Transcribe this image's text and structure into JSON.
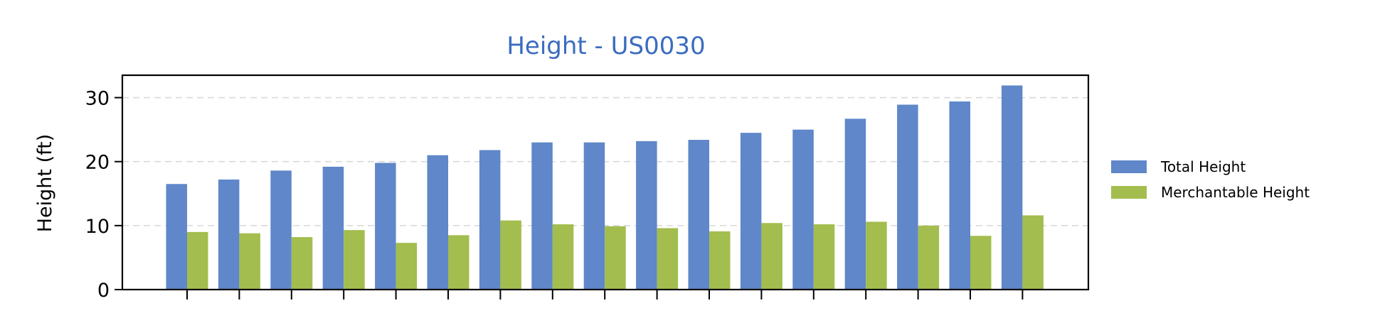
{
  "chart_data": {
    "type": "bar",
    "title": "Height - US0030",
    "xlabel": "",
    "ylabel": "Height (ft)",
    "ylim": [
      0,
      33.5
    ],
    "yticks": [
      0,
      10,
      20,
      30
    ],
    "grid": "y-dashed",
    "legend_position": "right",
    "categories": [
      "",
      "",
      "",
      "",
      "",
      "",
      "",
      "",
      "",
      "",
      "",
      "",
      "",
      "",
      "",
      "",
      ""
    ],
    "series": [
      {
        "name": "Total Height",
        "color": "#5f87c9",
        "values": [
          16.5,
          17.2,
          18.6,
          19.2,
          19.8,
          21.0,
          21.8,
          23.0,
          23.0,
          23.2,
          23.4,
          24.5,
          25.0,
          26.7,
          28.9,
          29.4,
          31.9
        ]
      },
      {
        "name": "Merchantable Height",
        "color": "#a3bd4e",
        "values": [
          9.0,
          8.8,
          8.2,
          9.3,
          7.3,
          8.5,
          10.8,
          10.2,
          9.9,
          9.6,
          9.1,
          10.4,
          10.2,
          10.6,
          10.0,
          8.4,
          11.6
        ]
      }
    ]
  }
}
